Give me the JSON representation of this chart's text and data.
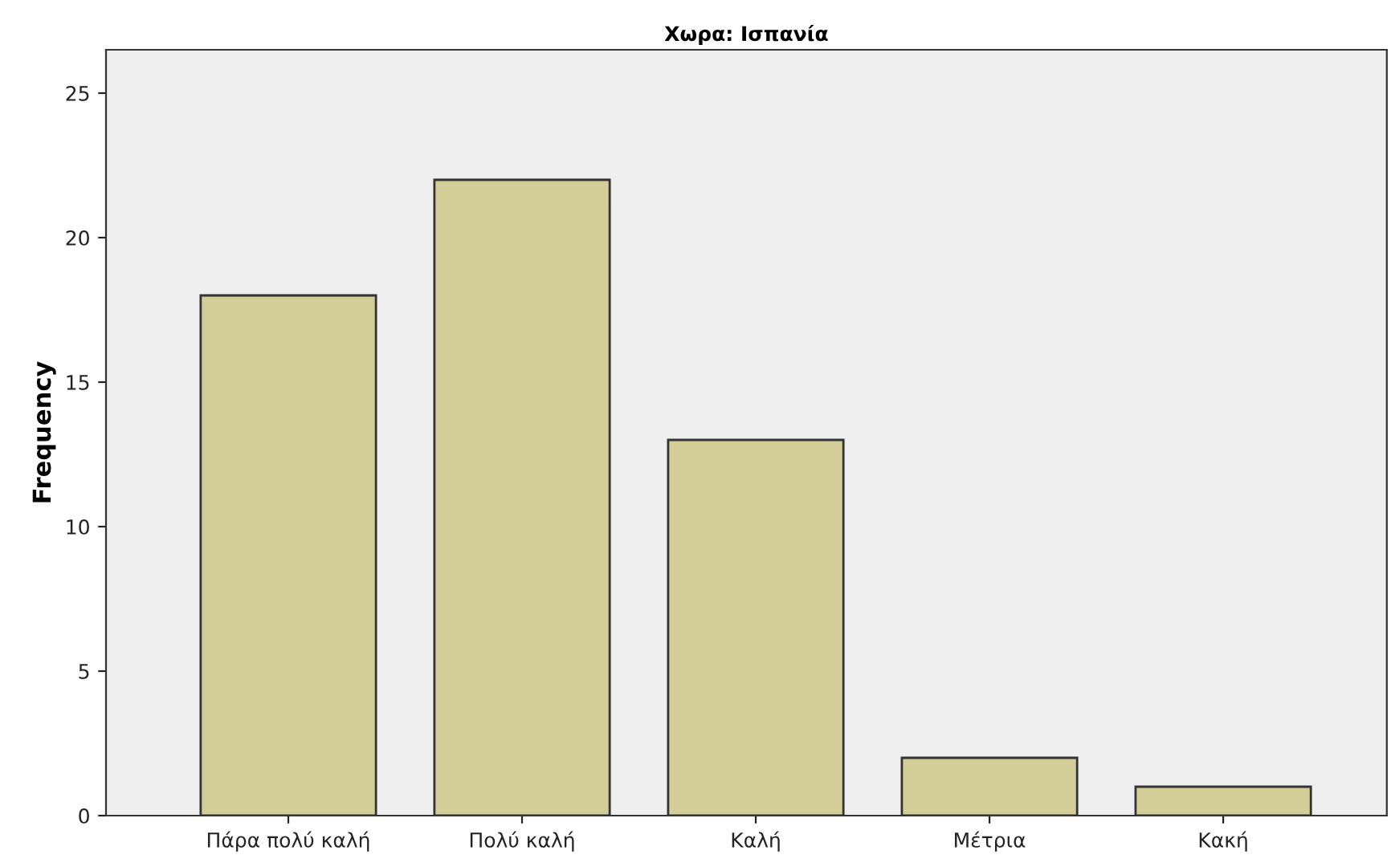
{
  "chart_data": {
    "type": "bar",
    "title": "Χωρα: Ισπανία",
    "ylabel": "Frequency",
    "categories": [
      "Πάρα πολύ καλή",
      "Πολύ καλή",
      "Καλή",
      "Μέτρια",
      "Κακή"
    ],
    "values": [
      18,
      22,
      13,
      2,
      1
    ],
    "color": "#d3ce98",
    "ylim": [
      0,
      26.5
    ],
    "yticks": [
      0,
      5,
      10,
      15,
      20,
      25
    ],
    "grid": false
  }
}
